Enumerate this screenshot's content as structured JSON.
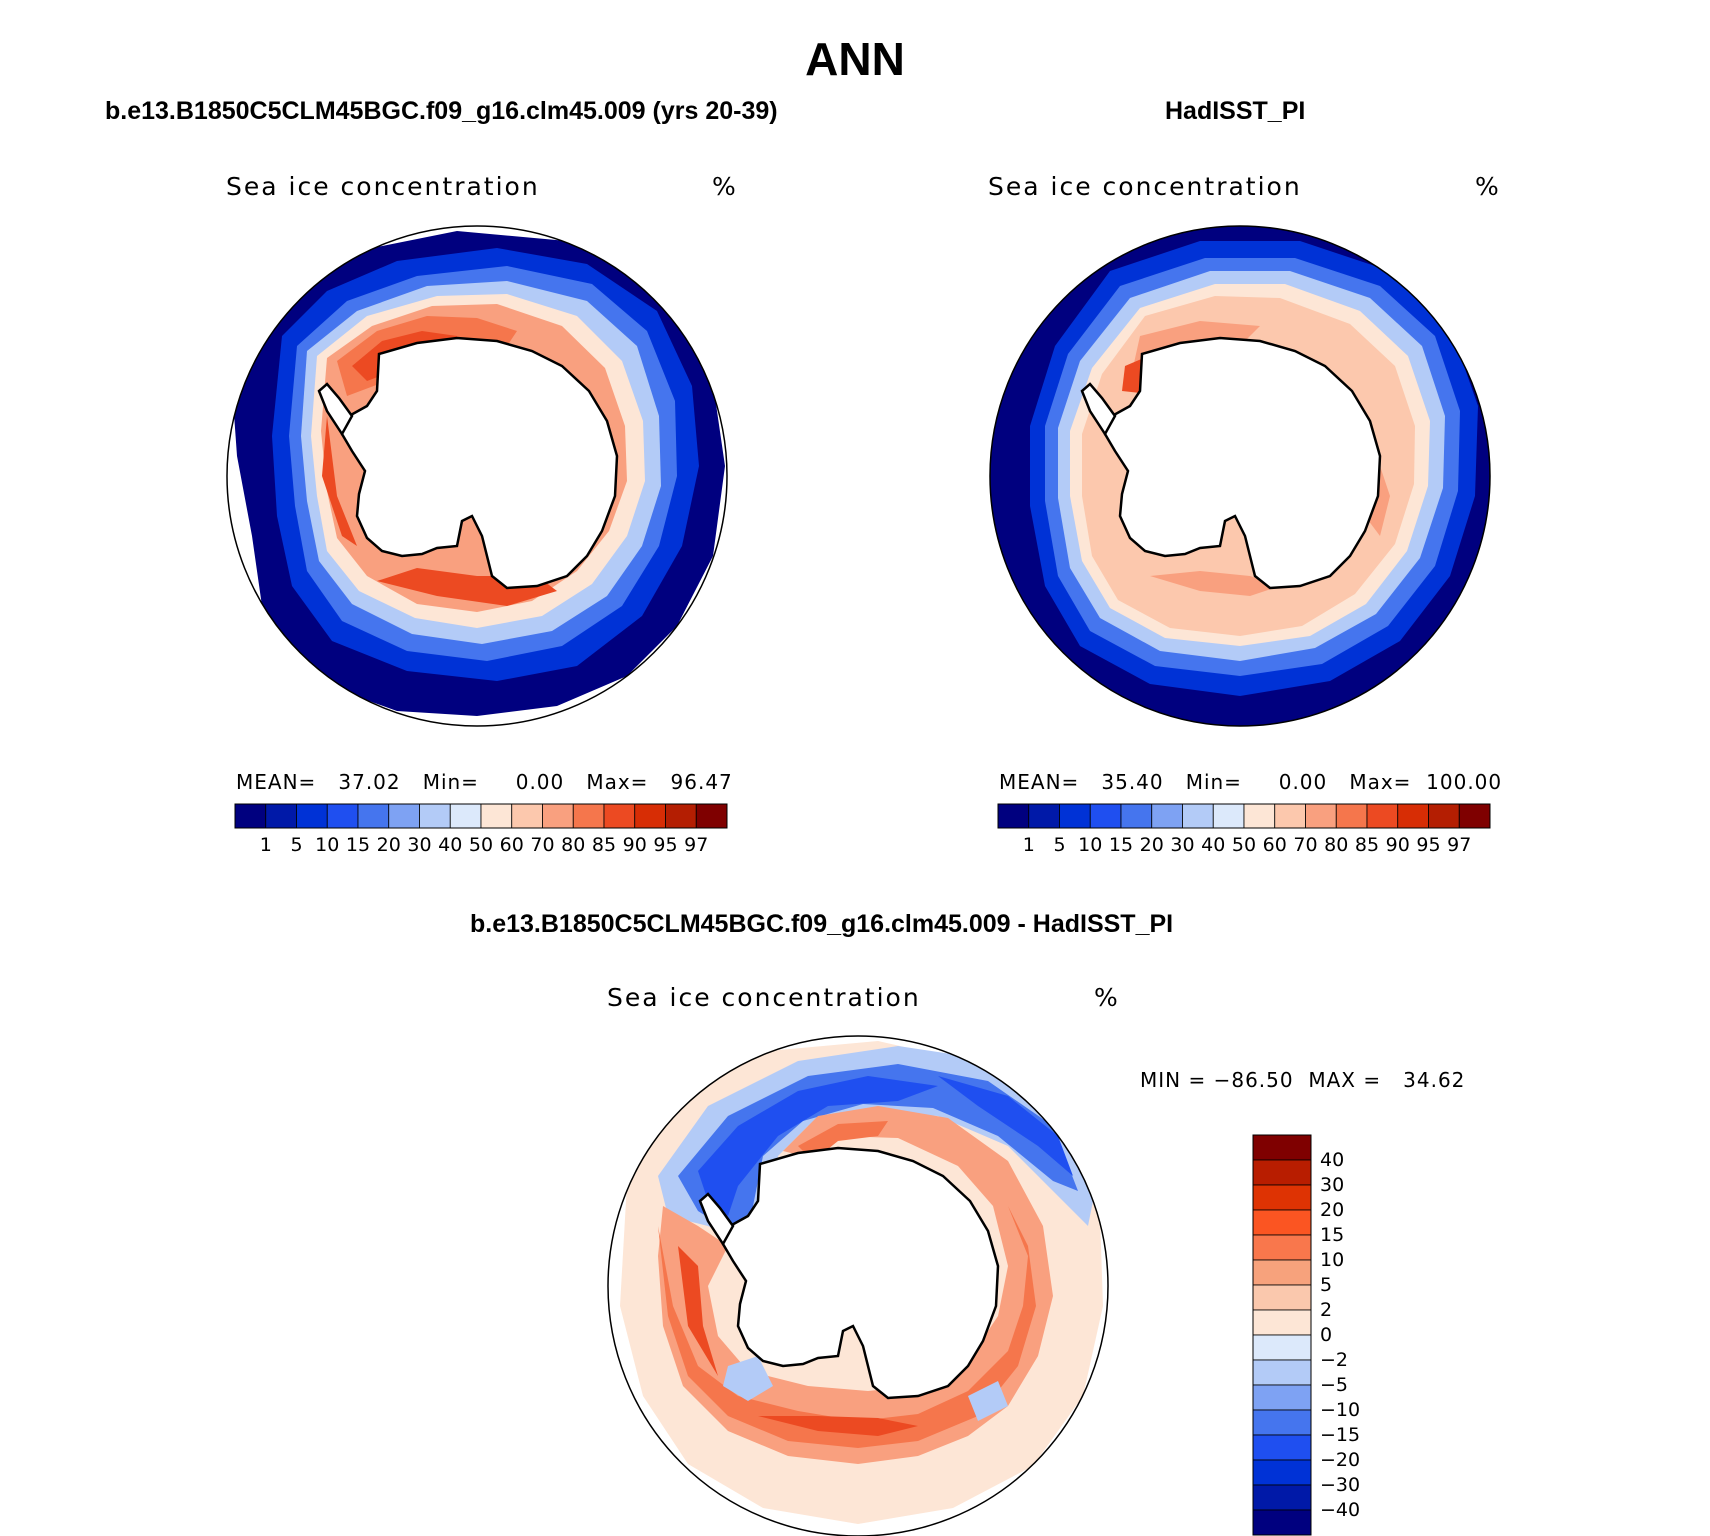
{
  "figure": {
    "title": "ANN"
  },
  "panels": [
    {
      "case_title": "b.e13.B1850C5CLM45BGC.f09_g16.clm45.009 (yrs 20-39)",
      "variable": "Sea ice concentration",
      "units": "%",
      "stats": "MEAN=   37.02   Min=     0.00   Max=   96.47",
      "colorbar_labels": [
        "1",
        "5",
        "10",
        "15",
        "20",
        "30",
        "40",
        "50",
        "60",
        "70",
        "80",
        "85",
        "90",
        "95",
        "97"
      ]
    },
    {
      "case_title": "HadISST_PI",
      "variable": "Sea ice concentration",
      "units": "%",
      "stats": "MEAN=   35.40   Min=     0.00   Max=  100.00",
      "colorbar_labels": [
        "1",
        "5",
        "10",
        "15",
        "20",
        "30",
        "40",
        "50",
        "60",
        "70",
        "80",
        "85",
        "90",
        "95",
        "97"
      ]
    },
    {
      "case_title": "b.e13.B1850C5CLM45BGC.f09_g16.clm45.009 - HadISST_PI",
      "variable": "Sea ice concentration",
      "units": "%",
      "stats": "MIN = −86.50  MAX =   34.62",
      "colorbar_labels": [
        "40",
        "30",
        "20",
        "15",
        "10",
        "5",
        "2",
        "0",
        "−2",
        "−5",
        "−10",
        "−15",
        "−20",
        "−30",
        "−40"
      ]
    }
  ],
  "colors": {
    "abs_scale": [
      "#00007f",
      "#0019a8",
      "#0032d6",
      "#1f4ff0",
      "#4575ee",
      "#7ea2f3",
      "#b3cbf7",
      "#dce9fb",
      "#fde6d6",
      "#fcc8ad",
      "#f9a07f",
      "#f5764c",
      "#ec4a22",
      "#d72d05",
      "#b41e02",
      "#7f0000"
    ],
    "diff_scale_top_to_bottom": [
      "#7f0000",
      "#b81d00",
      "#de3303",
      "#fb5522",
      "#f9774c",
      "#f7a27c",
      "#fac8ad",
      "#fde6d6",
      "#dce9fb",
      "#b3cbf7",
      "#7ea2f3",
      "#4575ee",
      "#1f4ff0",
      "#0032d6",
      "#0019a8",
      "#00007f"
    ],
    "land": "#ffffff",
    "coastline": "#000000"
  }
}
